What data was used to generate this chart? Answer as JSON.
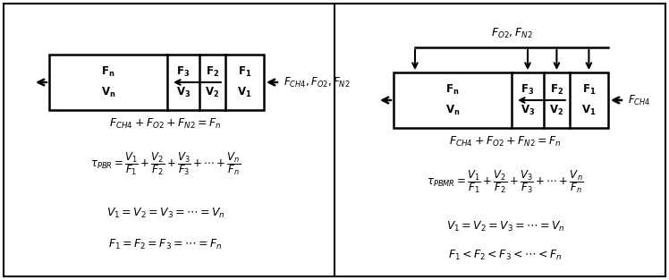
{
  "fig_width": 7.48,
  "fig_height": 3.13,
  "bg_color": "#ffffff",
  "left_panel": {
    "inlet_label": "$F_{CH4},F_{O2},F_{N2}$",
    "eq1": "$F_{CH4}+F_{O2}+F_{N2}=F_n$",
    "eq2": "$\\tau_{PBR}=\\dfrac{V_1}{F_1}+\\dfrac{V_2}{F_2}+\\dfrac{V_3}{F_3}+\\cdots+\\dfrac{V_n}{F_n}$",
    "eq3": "$V_1=V_2=V_3=\\cdots=V_n$",
    "eq4": "$F_1=F_2=F_3=\\cdots=F_n$"
  },
  "right_panel": {
    "top_label": "$F_{O2},F_{N2}$",
    "inlet_label": "$F_{CH4}$",
    "eq1": "$F_{CH4}+F_{O2}+F_{N2}=F_n$",
    "eq2": "$\\tau_{PBMR}=\\dfrac{V_1}{F_1}+\\dfrac{V_2}{F_2}+\\dfrac{V_3}{F_3}+\\cdots+\\dfrac{V_n}{F_n}$",
    "eq3": "$V_1=V_2=V_3=\\cdots=V_n$",
    "eq4": "$F_1<F_2<F_3<\\cdots<F_n$"
  }
}
